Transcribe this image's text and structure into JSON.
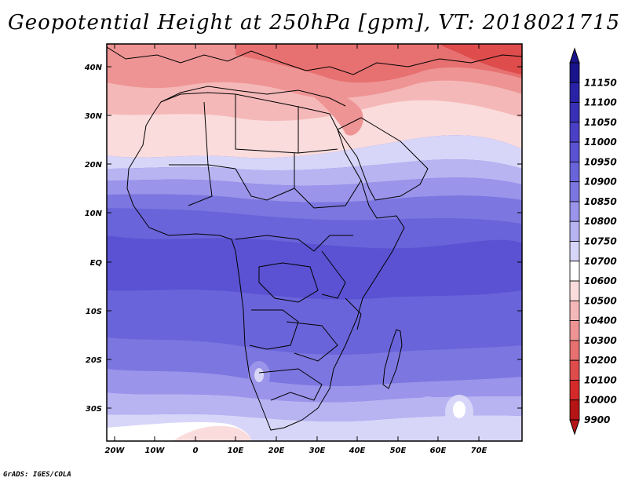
{
  "title": "Geopotential Height at 250hPa [gpm], VT: 2018021715",
  "credit": "GrADS: IGES/COLA",
  "map": {
    "type": "filled-contour map",
    "lon_range": [
      -25,
      80
    ],
    "lat_range": [
      -38,
      45
    ],
    "lat_ticks": [
      "40N",
      "30N",
      "20N",
      "10N",
      "EQ",
      "10S",
      "20S",
      "30S"
    ],
    "lon_ticks": [
      "20W",
      "10W",
      "0",
      "10E",
      "20E",
      "30E",
      "40E",
      "50E",
      "60E",
      "70E"
    ]
  },
  "colorbar": {
    "levels": [
      "11150",
      "11100",
      "11050",
      "11000",
      "10950",
      "10900",
      "10850",
      "10800",
      "10750",
      "10700",
      "10600",
      "10500",
      "10400",
      "10300",
      "10200",
      "10100",
      "10000",
      "9900"
    ],
    "colors": [
      "#1a148c",
      "#2a22a6",
      "#3a30b8",
      "#4a40c6",
      "#5a52d2",
      "#6a64da",
      "#7c76e0",
      "#9a94ea",
      "#b8b4f2",
      "#d8d6f8",
      "#ffffff",
      "#fbdcdc",
      "#f5b8b8",
      "#ee9494",
      "#e77070",
      "#de4c4c",
      "#d42a2a",
      "#b51515"
    ]
  }
}
